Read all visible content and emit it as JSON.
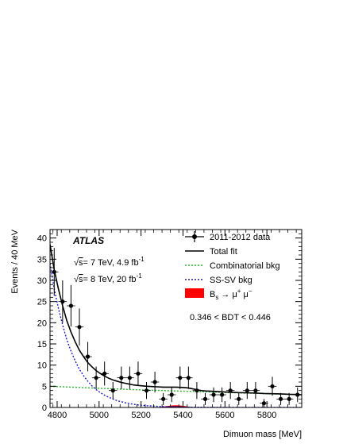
{
  "chart_data": {
    "type": "scatter",
    "experiment": "ATLAS",
    "energy_lines": [
      {
        "sqrt": "√",
        "s": "s",
        "rest": "= 7 TeV, 4.9 fb",
        "sup": "-1"
      },
      {
        "sqrt": "√",
        "s": "s",
        "rest": "= 8 TeV, 20 fb",
        "sup": "-1"
      }
    ],
    "selection": "0.346 < BDT < 0.446",
    "xlabel": "Dimuon mass [MeV]",
    "ylabel": "Events / 40 MeV",
    "xlim": [
      4766,
      5966
    ],
    "ylim": [
      0,
      42
    ],
    "xticks": [
      4800,
      5000,
      5200,
      5400,
      5600,
      5800
    ],
    "xtick_labels": [
      "4800",
      "5000",
      "5200",
      "5400",
      "5600",
      "5800"
    ],
    "yticks": [
      0,
      5,
      10,
      15,
      20,
      25,
      30,
      35,
      40
    ],
    "ytick_labels": [
      "0",
      "5",
      "10",
      "15",
      "20",
      "25",
      "30",
      "35",
      "40"
    ],
    "legend": [
      {
        "key": "data",
        "label": "2011-2012 data"
      },
      {
        "key": "total",
        "label": "Total fit"
      },
      {
        "key": "comb",
        "label": "Combinatorial bkg"
      },
      {
        "key": "sssv",
        "label": "SS-SV bkg"
      },
      {
        "key": "bs",
        "label_main": "B",
        "label_sub": "s",
        "label_arrow": " → μ",
        "label_sup1": "+",
        "label_mu2": " μ",
        "label_sup2": "−"
      }
    ],
    "data_points": {
      "x": [
        4786,
        4826,
        4866,
        4906,
        4946,
        4986,
        5026,
        5066,
        5106,
        5146,
        5186,
        5226,
        5266,
        5306,
        5346,
        5386,
        5426,
        5466,
        5506,
        5546,
        5586,
        5626,
        5666,
        5706,
        5746,
        5786,
        5826,
        5866,
        5906,
        5946
      ],
      "y": [
        32,
        25,
        24,
        19,
        12,
        7,
        8,
        4,
        7,
        7,
        8,
        4,
        6,
        2,
        3,
        7,
        7,
        4,
        2,
        3,
        3,
        4,
        2,
        4,
        4,
        1,
        5,
        2,
        2,
        3
      ]
    },
    "total_fit": {
      "x": [
        4766,
        4786,
        4806,
        4826,
        4846,
        4866,
        4886,
        4906,
        4926,
        4946,
        4966,
        4986,
        5006,
        5026,
        5046,
        5066,
        5086,
        5106,
        5126,
        5146,
        5166,
        5186,
        5206,
        5226,
        5246,
        5266,
        5286,
        5306,
        5326,
        5346,
        5366,
        5386,
        5406,
        5426,
        5446,
        5466,
        5486,
        5506,
        5546,
        5586,
        5626,
        5666,
        5706,
        5746,
        5786,
        5826,
        5866,
        5906,
        5946,
        5966
      ],
      "y": [
        38.5,
        32.5,
        28.0,
        24.0,
        20.5,
        17.8,
        15.5,
        13.5,
        12.0,
        10.6,
        9.6,
        8.7,
        8.0,
        7.4,
        6.9,
        6.5,
        6.2,
        5.9,
        5.7,
        5.5,
        5.3,
        5.2,
        5.1,
        5.0,
        4.95,
        4.9,
        4.85,
        4.8,
        4.8,
        4.8,
        4.8,
        4.75,
        4.7,
        4.6,
        4.4,
        4.2,
        4.0,
        3.9,
        3.8,
        3.7,
        3.6,
        3.5,
        3.45,
        3.4,
        3.3,
        3.25,
        3.2,
        3.1,
        3.05,
        3.0
      ]
    },
    "combinatorial_bkg": {
      "x": [
        4766,
        4966,
        5166,
        5366,
        5566,
        5766,
        5966
      ],
      "y": [
        5.0,
        4.6,
        4.2,
        3.9,
        3.6,
        3.3,
        3.0
      ]
    },
    "sssv_bkg": {
      "x": [
        4766,
        4786,
        4806,
        4826,
        4846,
        4866,
        4886,
        4906,
        4926,
        4946,
        4966,
        4986,
        5006,
        5026,
        5046,
        5066,
        5086,
        5106,
        5126,
        5146,
        5166,
        5186,
        5206,
        5226,
        5266,
        5306,
        5366,
        5426,
        5506,
        5586,
        5666,
        5766,
        5866,
        5966
      ],
      "y": [
        34.0,
        28.0,
        23.4,
        19.5,
        16.0,
        13.3,
        11.0,
        9.0,
        7.5,
        6.2,
        5.1,
        4.2,
        3.5,
        2.9,
        2.4,
        2.0,
        1.6,
        1.35,
        1.1,
        0.9,
        0.75,
        0.6,
        0.5,
        0.42,
        0.3,
        0.2,
        0.12,
        0.07,
        0.04,
        0.02,
        0.01,
        0.005,
        0.002,
        0.001
      ]
    },
    "bs_signal": {
      "x": [
        5286,
        5306,
        5326,
        5346,
        5366,
        5386,
        5406,
        5426,
        5446
      ],
      "y": [
        0.0,
        0.12,
        0.28,
        0.4,
        0.45,
        0.4,
        0.28,
        0.12,
        0.0
      ]
    },
    "colors": {
      "data": "#000000",
      "total": "#000000",
      "comb": "#22bb22",
      "sssv": "#1a1ad6",
      "bs": "#ff0000",
      "bs_fill_core": "#7a0030"
    }
  }
}
